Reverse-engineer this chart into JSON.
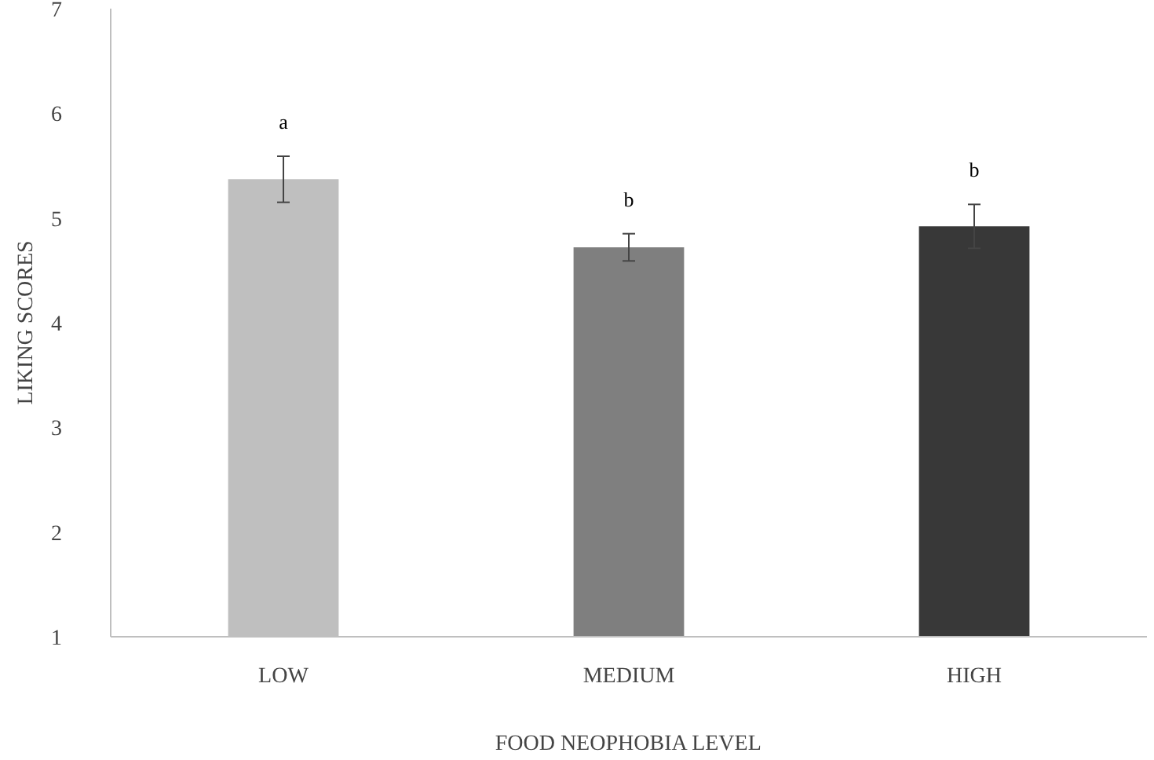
{
  "chart_data": {
    "type": "bar",
    "xlabel": "FOOD NEOPHOBIA LEVEL",
    "ylabel": "LIKING SCORES",
    "categories": [
      "LOW",
      "MEDIUM",
      "HIGH"
    ],
    "values": [
      5.37,
      4.72,
      4.92
    ],
    "colors": [
      "#bfbfbf",
      "#7f7f7f",
      "#383838"
    ],
    "errors": [
      0.22,
      0.13,
      0.21
    ],
    "ylim": [
      1,
      7
    ],
    "yticks": [
      1,
      2,
      3,
      4,
      5,
      6,
      7
    ],
    "grid": false,
    "annotations": [
      "a",
      "b",
      "b"
    ]
  }
}
